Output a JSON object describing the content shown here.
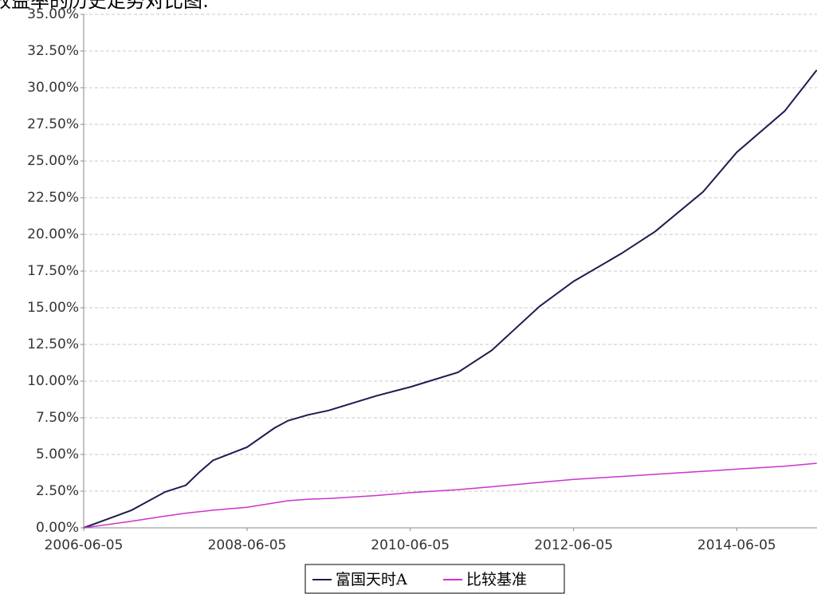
{
  "chart_data": {
    "type": "line",
    "title": "收益率的历史走势对比图:",
    "x": [
      "2006-06-05",
      "2007-01-05",
      "2007-06-05",
      "2007-09-05",
      "2007-11-05",
      "2008-01-05",
      "2008-06-05",
      "2008-10-05",
      "2008-12-05",
      "2009-03-05",
      "2009-06-05",
      "2010-01-05",
      "2010-06-05",
      "2011-01-05",
      "2011-06-05",
      "2012-01-05",
      "2012-06-05",
      "2013-01-05",
      "2013-06-05",
      "2014-01-05",
      "2014-06-05",
      "2015-01-05",
      "2015-05-29"
    ],
    "series": [
      {
        "name": "富国天时A",
        "color": "#1c1c50",
        "values": [
          0,
          1.2,
          2.45,
          2.9,
          3.8,
          4.6,
          5.5,
          6.8,
          7.3,
          7.7,
          8.0,
          9.0,
          9.6,
          10.6,
          12.1,
          15.1,
          16.8,
          18.7,
          20.2,
          22.9,
          25.6,
          28.4,
          31.2
        ]
      },
      {
        "name": "比较基准",
        "color": "#cc33cc",
        "values": [
          0,
          0.45,
          0.8,
          1.0,
          1.1,
          1.2,
          1.4,
          1.7,
          1.85,
          1.95,
          2.0,
          2.2,
          2.4,
          2.6,
          2.8,
          3.1,
          3.3,
          3.5,
          3.65,
          3.85,
          4.0,
          4.2,
          4.4
        ]
      }
    ],
    "xlim": [
      "2006-06-05",
      "2015-05-30"
    ],
    "xticks": [
      "2006-06-05",
      "2008-06-05",
      "2010-06-05",
      "2012-06-05",
      "2014-06-05"
    ],
    "ylim": [
      0,
      35
    ],
    "yticks": [
      {
        "value": 0,
        "label": "0.00%"
      },
      {
        "value": 2.5,
        "label": "2.50%"
      },
      {
        "value": 5,
        "label": "5.00%"
      },
      {
        "value": 7.5,
        "label": "7.50%"
      },
      {
        "value": 10,
        "label": "10.00%"
      },
      {
        "value": 12.5,
        "label": "12.50%"
      },
      {
        "value": 15,
        "label": "15.00%"
      },
      {
        "value": 17.5,
        "label": "17.50%"
      },
      {
        "value": 20,
        "label": "20.00%"
      },
      {
        "value": 22.5,
        "label": "22.50%"
      },
      {
        "value": 25,
        "label": "25.00%"
      },
      {
        "value": 27.5,
        "label": "27.50%"
      },
      {
        "value": 30,
        "label": "30.00%"
      },
      {
        "value": 32.5,
        "label": "32.50%"
      },
      {
        "value": 35,
        "label": "35.00%"
      }
    ],
    "grid": true
  }
}
